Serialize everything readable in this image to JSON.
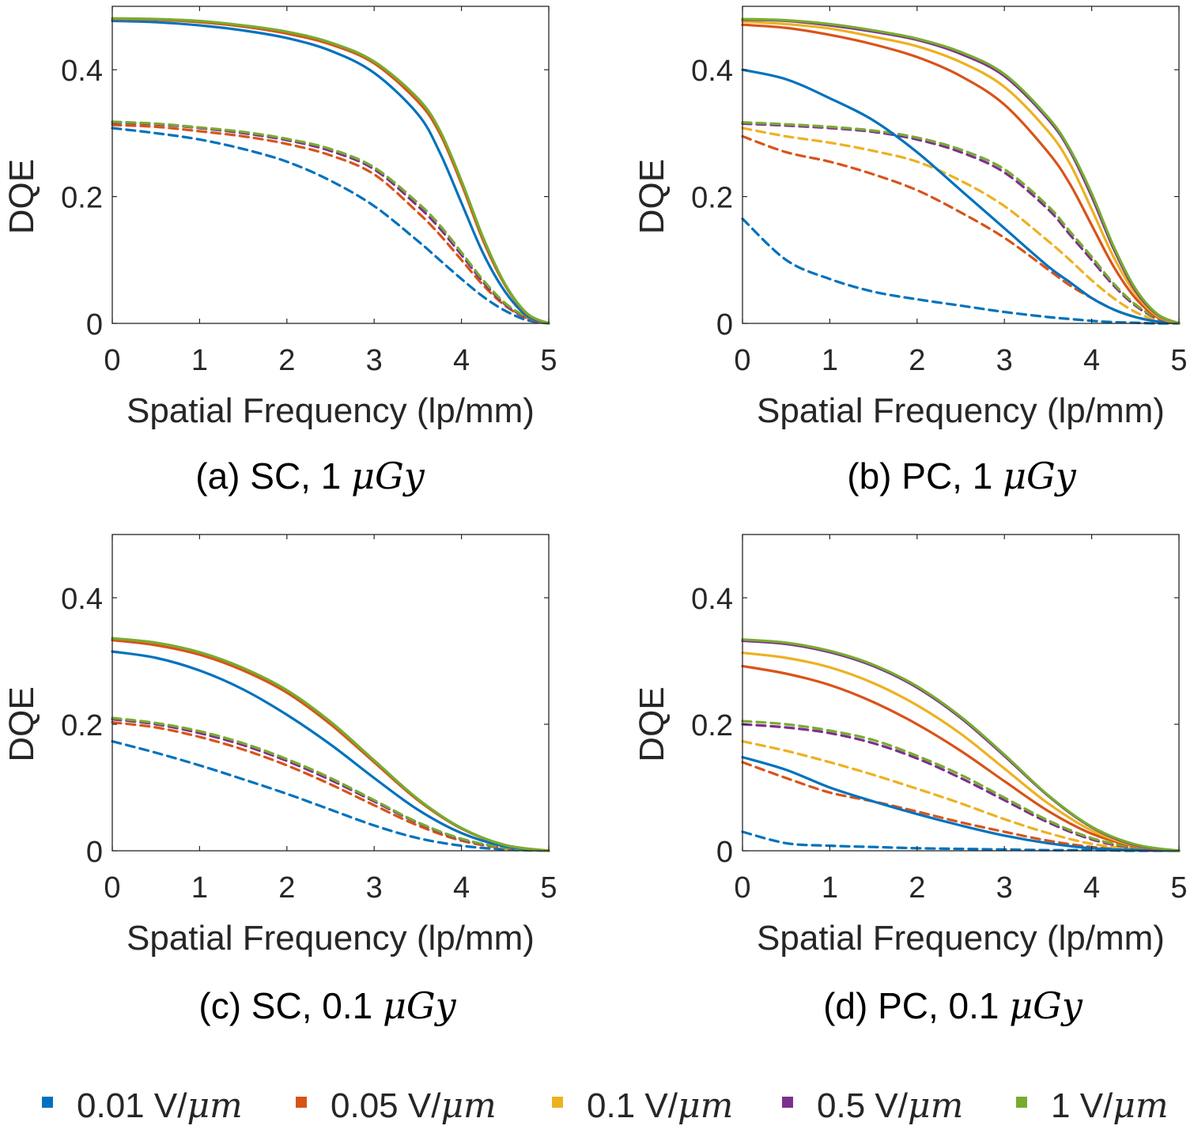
{
  "chart_data": [
    {
      "type": "line",
      "panel": "a",
      "caption": "(a) SC, 1 ",
      "caption_unit": "μGy",
      "xlabel": "Spatial Frequency (lp/mm)",
      "ylabel": "DQE",
      "xlim": [
        0,
        5
      ],
      "ylim": [
        0,
        0.5
      ],
      "xticks": [
        0,
        1,
        2,
        3,
        4,
        5
      ],
      "yticks": [
        0,
        0.2,
        0.4
      ],
      "ytick_labels": [
        "0",
        "0.2",
        "0.4"
      ],
      "x": [
        0,
        0.5,
        1,
        1.5,
        2,
        2.5,
        3,
        3.5,
        3.75,
        4,
        4.25,
        4.5,
        4.75,
        5
      ],
      "series": [
        {
          "name": "0.01 V/μm",
          "style": "solid",
          "values": [
            0.477,
            0.475,
            0.47,
            0.462,
            0.45,
            0.43,
            0.395,
            0.33,
            0.27,
            0.19,
            0.11,
            0.05,
            0.012,
            0
          ]
        },
        {
          "name": "0.05 V/μm",
          "style": "solid",
          "values": [
            0.48,
            0.479,
            0.475,
            0.468,
            0.457,
            0.44,
            0.41,
            0.35,
            0.3,
            0.22,
            0.13,
            0.06,
            0.015,
            0
          ]
        },
        {
          "name": "1 V/μm",
          "style": "solid",
          "values": [
            0.481,
            0.48,
            0.477,
            0.47,
            0.46,
            0.443,
            0.413,
            0.355,
            0.305,
            0.225,
            0.135,
            0.062,
            0.016,
            0
          ]
        },
        {
          "name": "0.01 V/μm",
          "style": "dashed",
          "values": [
            0.308,
            0.3,
            0.29,
            0.275,
            0.255,
            0.225,
            0.185,
            0.13,
            0.1,
            0.07,
            0.042,
            0.02,
            0.005,
            0
          ]
        },
        {
          "name": "0.05 V/μm",
          "style": "dashed",
          "values": [
            0.313,
            0.31,
            0.303,
            0.295,
            0.283,
            0.265,
            0.235,
            0.175,
            0.14,
            0.1,
            0.06,
            0.028,
            0.008,
            0
          ]
        },
        {
          "name": "0.5 V/μm",
          "style": "dashed",
          "values": [
            0.317,
            0.314,
            0.308,
            0.3,
            0.289,
            0.272,
            0.243,
            0.185,
            0.15,
            0.108,
            0.065,
            0.03,
            0.009,
            0
          ]
        },
        {
          "name": "1 V/μm",
          "style": "dashed",
          "values": [
            0.318,
            0.315,
            0.309,
            0.302,
            0.291,
            0.275,
            0.246,
            0.19,
            0.155,
            0.112,
            0.068,
            0.032,
            0.01,
            0
          ]
        }
      ]
    },
    {
      "type": "line",
      "panel": "b",
      "caption": "(b) PC, 1 ",
      "caption_unit": "μGy",
      "xlabel": "Spatial Frequency (lp/mm)",
      "ylabel": "DQE",
      "xlim": [
        0,
        5
      ],
      "ylim": [
        0,
        0.5
      ],
      "xticks": [
        0,
        1,
        2,
        3,
        4,
        5
      ],
      "yticks": [
        0,
        0.2,
        0.4
      ],
      "ytick_labels": [
        "0",
        "0.2",
        "0.4"
      ],
      "x": [
        0,
        0.5,
        1,
        1.5,
        2,
        2.5,
        3,
        3.5,
        3.75,
        4,
        4.25,
        4.5,
        4.75,
        5
      ],
      "series": [
        {
          "name": "0.01 V/μm",
          "style": "solid",
          "values": [
            0.4,
            0.385,
            0.355,
            0.32,
            0.27,
            0.21,
            0.15,
            0.09,
            0.065,
            0.04,
            0.022,
            0.01,
            0.003,
            0
          ]
        },
        {
          "name": "0.05 V/μm",
          "style": "solid",
          "values": [
            0.471,
            0.466,
            0.455,
            0.44,
            0.42,
            0.39,
            0.345,
            0.27,
            0.22,
            0.155,
            0.09,
            0.04,
            0.01,
            0
          ]
        },
        {
          "name": "0.1 V/μm",
          "style": "solid",
          "values": [
            0.476,
            0.472,
            0.465,
            0.452,
            0.437,
            0.412,
            0.373,
            0.303,
            0.252,
            0.18,
            0.105,
            0.047,
            0.012,
            0
          ]
        },
        {
          "name": "0.5 V/μm",
          "style": "solid",
          "values": [
            0.479,
            0.477,
            0.47,
            0.46,
            0.447,
            0.425,
            0.39,
            0.322,
            0.272,
            0.2,
            0.118,
            0.052,
            0.014,
            0
          ]
        },
        {
          "name": "1 V/μm",
          "style": "solid",
          "values": [
            0.48,
            0.478,
            0.472,
            0.462,
            0.449,
            0.428,
            0.393,
            0.325,
            0.275,
            0.205,
            0.122,
            0.055,
            0.015,
            0
          ]
        },
        {
          "name": "0.01 V/μm",
          "style": "dashed",
          "values": [
            0.165,
            0.1,
            0.07,
            0.05,
            0.038,
            0.028,
            0.018,
            0.01,
            0.007,
            0.004,
            0.002,
            0.001,
            0,
            0
          ]
        },
        {
          "name": "0.05 V/μm",
          "style": "dashed",
          "values": [
            0.295,
            0.27,
            0.255,
            0.235,
            0.21,
            0.175,
            0.135,
            0.085,
            0.06,
            0.04,
            0.022,
            0.01,
            0.003,
            0
          ]
        },
        {
          "name": "0.1 V/μm",
          "style": "dashed",
          "values": [
            0.308,
            0.295,
            0.285,
            0.272,
            0.255,
            0.225,
            0.185,
            0.13,
            0.1,
            0.068,
            0.04,
            0.018,
            0.005,
            0
          ]
        },
        {
          "name": "0.5 V/μm",
          "style": "dashed",
          "values": [
            0.315,
            0.312,
            0.308,
            0.302,
            0.29,
            0.27,
            0.238,
            0.18,
            0.14,
            0.1,
            0.06,
            0.028,
            0.008,
            0
          ]
        },
        {
          "name": "1 V/μm",
          "style": "dashed",
          "values": [
            0.317,
            0.314,
            0.31,
            0.304,
            0.293,
            0.274,
            0.243,
            0.185,
            0.145,
            0.105,
            0.063,
            0.03,
            0.009,
            0
          ]
        }
      ]
    },
    {
      "type": "line",
      "panel": "c",
      "caption": "(c) SC, 0.1 ",
      "caption_unit": "μGy",
      "xlabel": "Spatial Frequency (lp/mm)",
      "ylabel": "DQE",
      "xlim": [
        0,
        5
      ],
      "ylim": [
        0,
        0.5
      ],
      "xticks": [
        0,
        1,
        2,
        3,
        4,
        5
      ],
      "yticks": [
        0,
        0.2,
        0.4
      ],
      "ytick_labels": [
        "0",
        "0.2",
        "0.4"
      ],
      "x": [
        0,
        0.5,
        1,
        1.5,
        2,
        2.5,
        3,
        3.5,
        4,
        4.5,
        5
      ],
      "series": [
        {
          "name": "0.01 V/μm",
          "style": "solid",
          "values": [
            0.315,
            0.305,
            0.285,
            0.255,
            0.215,
            0.168,
            0.115,
            0.065,
            0.028,
            0.007,
            0
          ]
        },
        {
          "name": "0.05 V/μm",
          "style": "solid",
          "values": [
            0.333,
            0.325,
            0.31,
            0.285,
            0.25,
            0.2,
            0.14,
            0.08,
            0.035,
            0.009,
            0
          ]
        },
        {
          "name": "1 V/μm",
          "style": "solid",
          "values": [
            0.336,
            0.329,
            0.314,
            0.289,
            0.254,
            0.204,
            0.143,
            0.082,
            0.036,
            0.009,
            0
          ]
        },
        {
          "name": "0.01 V/μm",
          "style": "dashed",
          "values": [
            0.173,
            0.155,
            0.135,
            0.113,
            0.09,
            0.065,
            0.04,
            0.02,
            0.008,
            0.002,
            0
          ]
        },
        {
          "name": "0.05 V/μm",
          "style": "dashed",
          "values": [
            0.203,
            0.195,
            0.18,
            0.16,
            0.135,
            0.105,
            0.072,
            0.04,
            0.016,
            0.004,
            0
          ]
        },
        {
          "name": "0.5 V/μm",
          "style": "dashed",
          "values": [
            0.208,
            0.2,
            0.186,
            0.167,
            0.142,
            0.112,
            0.078,
            0.044,
            0.018,
            0.005,
            0
          ]
        },
        {
          "name": "1 V/μm",
          "style": "dashed",
          "values": [
            0.21,
            0.202,
            0.189,
            0.17,
            0.145,
            0.115,
            0.08,
            0.045,
            0.019,
            0.005,
            0
          ]
        }
      ]
    },
    {
      "type": "line",
      "panel": "d",
      "caption": "(d) PC, 0.1 ",
      "caption_unit": "μGy",
      "xlabel": "Spatial Frequency (lp/mm)",
      "ylabel": "DQE",
      "xlim": [
        0,
        5
      ],
      "ylim": [
        0,
        0.5
      ],
      "xticks": [
        0,
        1,
        2,
        3,
        4,
        5
      ],
      "yticks": [
        0,
        0.2,
        0.4
      ],
      "ytick_labels": [
        "0",
        "0.2",
        "0.4"
      ],
      "x": [
        0,
        0.5,
        1,
        1.5,
        2,
        2.5,
        3,
        3.5,
        4,
        4.5,
        5
      ],
      "series": [
        {
          "name": "0.01 V/μm",
          "style": "solid",
          "values": [
            0.148,
            0.128,
            0.1,
            0.078,
            0.058,
            0.04,
            0.024,
            0.012,
            0.004,
            0.001,
            0
          ]
        },
        {
          "name": "0.05 V/μm",
          "style": "solid",
          "values": [
            0.292,
            0.28,
            0.262,
            0.235,
            0.2,
            0.158,
            0.11,
            0.063,
            0.027,
            0.007,
            0
          ]
        },
        {
          "name": "0.1 V/μm",
          "style": "solid",
          "values": [
            0.313,
            0.305,
            0.29,
            0.265,
            0.23,
            0.185,
            0.13,
            0.075,
            0.032,
            0.008,
            0
          ]
        },
        {
          "name": "0.5 V/μm",
          "style": "solid",
          "values": [
            0.332,
            0.327,
            0.314,
            0.292,
            0.258,
            0.21,
            0.15,
            0.087,
            0.037,
            0.009,
            0
          ]
        },
        {
          "name": "1 V/μm",
          "style": "solid",
          "values": [
            0.334,
            0.329,
            0.316,
            0.294,
            0.26,
            0.212,
            0.152,
            0.088,
            0.038,
            0.01,
            0
          ]
        },
        {
          "name": "0.01 V/μm",
          "style": "dashed",
          "values": [
            0.03,
            0.012,
            0.008,
            0.006,
            0.004,
            0.003,
            0.002,
            0.001,
            0.001,
            0,
            0
          ]
        },
        {
          "name": "0.05 V/μm",
          "style": "dashed",
          "values": [
            0.14,
            0.115,
            0.092,
            0.078,
            0.062,
            0.045,
            0.03,
            0.016,
            0.006,
            0.001,
            0
          ]
        },
        {
          "name": "0.1 V/μm",
          "style": "dashed",
          "values": [
            0.173,
            0.158,
            0.14,
            0.12,
            0.098,
            0.075,
            0.05,
            0.028,
            0.011,
            0.003,
            0
          ]
        },
        {
          "name": "0.5 V/μm",
          "style": "dashed",
          "values": [
            0.2,
            0.195,
            0.186,
            0.17,
            0.146,
            0.115,
            0.08,
            0.045,
            0.018,
            0.004,
            0
          ]
        },
        {
          "name": "1 V/μm",
          "style": "dashed",
          "values": [
            0.205,
            0.2,
            0.19,
            0.175,
            0.15,
            0.12,
            0.084,
            0.048,
            0.02,
            0.005,
            0
          ]
        }
      ]
    }
  ],
  "legend": {
    "placement": "bottom",
    "items": [
      {
        "label": "0.01 V/",
        "unit": "μm",
        "color": "#0072BD"
      },
      {
        "label": "0.05 V/",
        "unit": "μm",
        "color": "#D95319"
      },
      {
        "label": "0.1 V/",
        "unit": "μm",
        "color": "#EDB120"
      },
      {
        "label": "0.5 V/",
        "unit": "μm",
        "color": "#7E2F8E"
      },
      {
        "label": "1 V/",
        "unit": "μm",
        "color": "#77AC30"
      }
    ]
  }
}
